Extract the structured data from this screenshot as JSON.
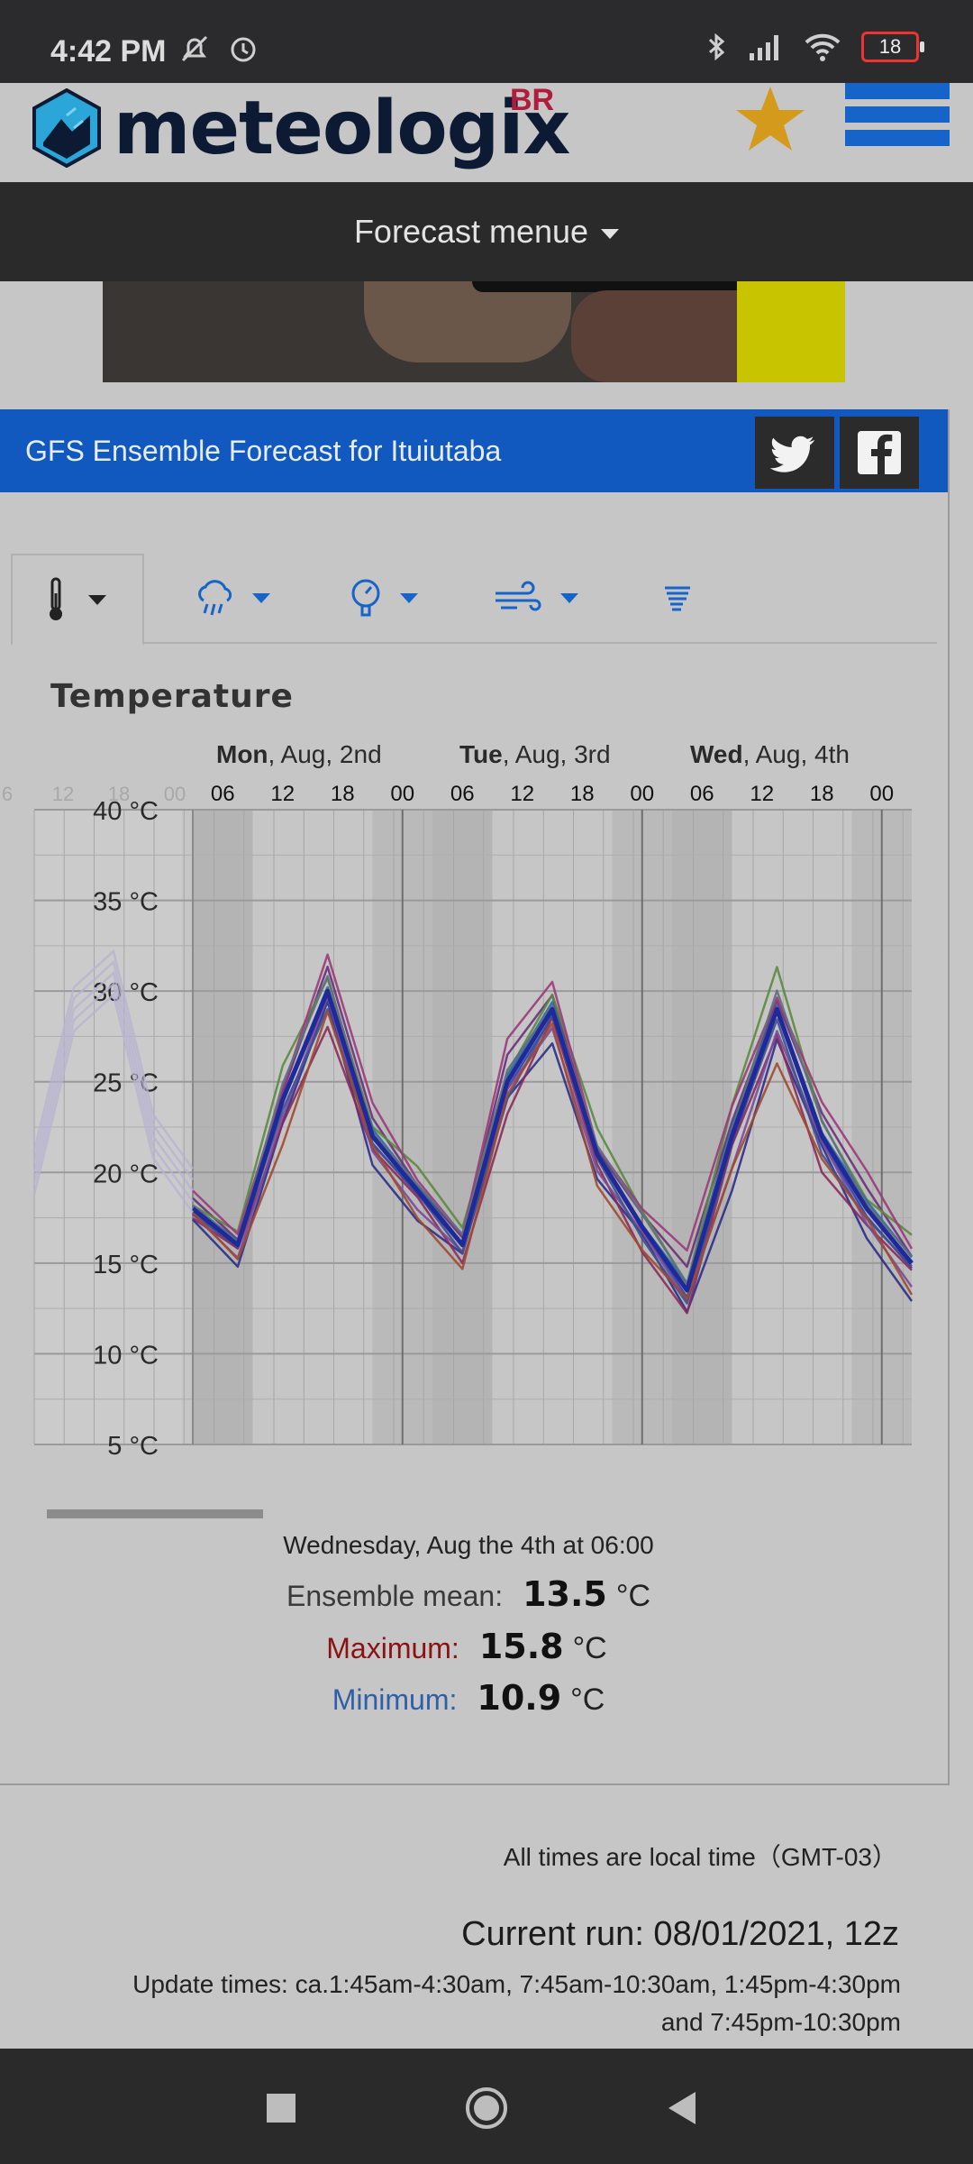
{
  "status_bar": {
    "time": "4:42 PM",
    "battery": "18",
    "icons": [
      "mute-icon",
      "alarm-icon",
      "bluetooth-icon",
      "signal-icon",
      "wifi-icon",
      "battery-icon"
    ]
  },
  "header": {
    "logo_text": "meteologix",
    "logo_suffix": "BR",
    "favorite_icon": "star-icon",
    "menu_icon": "hamburger-icon"
  },
  "forecast_menu": {
    "label": "Forecast menue"
  },
  "title_bar": {
    "title": "GFS Ensemble Forecast for Ituiutaba",
    "share": [
      "twitter-icon",
      "facebook-icon"
    ]
  },
  "tabs": [
    "thermometer-icon",
    "rain-icon",
    "pressure-icon",
    "wind-icon",
    "storm-icon"
  ],
  "section_title": "Temperature",
  "chart_data": {
    "type": "line",
    "title": "Temperature",
    "day_labels": [
      {
        "day": "Mon",
        "rest": ", Aug, 2nd"
      },
      {
        "day": "Tue",
        "rest": ", Aug, 3rd"
      },
      {
        "day": "Wed",
        "rest": ", Aug, 4th"
      }
    ],
    "x_ticks": [
      "06",
      "12",
      "18",
      "00",
      "06",
      "12",
      "18",
      "00",
      "06",
      "12",
      "18",
      "00"
    ],
    "faded_x_ticks": [
      "6",
      "12",
      "18",
      "00"
    ],
    "y_ticks": [
      "40 °C",
      "35 °C",
      "30 °C",
      "25 °C",
      "20 °C",
      "15 °C",
      "10 °C",
      "5 °C"
    ],
    "ylim": [
      5,
      40
    ],
    "grid": true,
    "series_colors": [
      "#2b2f8a",
      "#3340a8",
      "#6a2f7a",
      "#8a2a5a",
      "#b03030",
      "#5a8a40",
      "#7a4a9a",
      "#2a6aa0",
      "#9a3a7a",
      "#405090",
      "#607080",
      "#a04a30"
    ],
    "mean": [
      18,
      16,
      24,
      30,
      22,
      19,
      16,
      25,
      29,
      21,
      17,
      13.5,
      22,
      29,
      22,
      18,
      15
    ],
    "spread": [
      1,
      1.2,
      2.5,
      2.5,
      2,
      1.8,
      1.5,
      2.5,
      2,
      1.8,
      1.8,
      2.2,
      3,
      3,
      2.5,
      2.2,
      2.2
    ]
  },
  "readout": {
    "date": "Wednesday, Aug the 4th at 06:00",
    "mean_label": "Ensemble mean:",
    "mean_value": "13.5",
    "max_label": "Maximum:",
    "max_value": "15.8",
    "min_label": "Minimum:",
    "min_value": "10.9",
    "unit": "°C",
    "max_color": "#8b1212",
    "min_color": "#2f5fa8"
  },
  "footer": {
    "local_time": "All times are local time（GMT-03）",
    "current_run": "Current run: 08/01/2021, 12z",
    "update_line1": "Update times: ca.1:45am-4:30am, 7:45am-10:30am, 1:45pm-4:30pm",
    "update_line2": "and 7:45pm-10:30pm"
  },
  "nav_bar": [
    "recent-apps-button",
    "home-button",
    "back-button"
  ]
}
